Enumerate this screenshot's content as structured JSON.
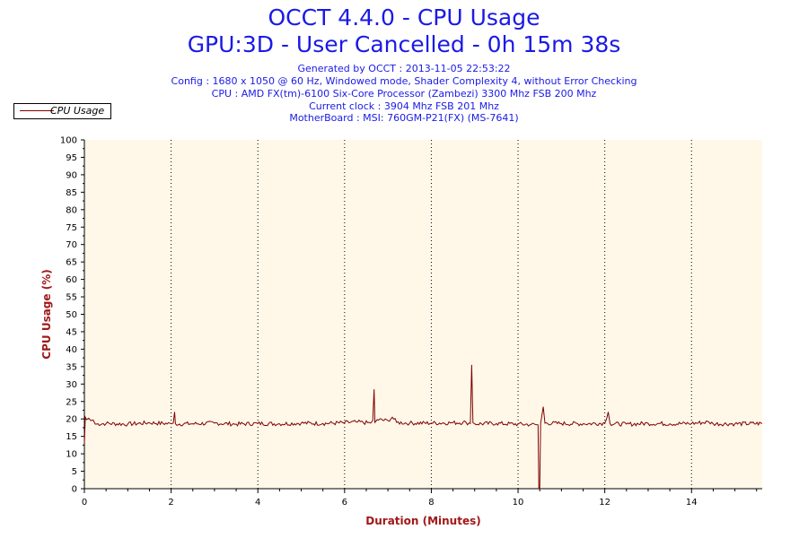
{
  "header": {
    "title": "OCCT 4.4.0 - CPU Usage",
    "subtitle": "GPU:3D - User Cancelled - 0h 15m 38s",
    "info_lines": [
      "Generated by OCCT : 2013-11-05 22:53:22",
      "Config : 1680 x 1050 @ 60 Hz, Windowed mode, Shader Complexity 4, without Error Checking",
      "CPU : AMD FX(tm)-6100 Six-Core Processor (Zambezi) 3300 Mhz FSB 200 Mhz",
      "Current clock : 3904 Mhz FSB 201 Mhz",
      "MotherBoard : MSI: 760GM-P21(FX) (MS-7641)"
    ]
  },
  "colors": {
    "line": "#800000",
    "plot_background": "#fff8e9",
    "title": "#1a1ae6",
    "axis_label": "#a01818"
  },
  "chart_data": {
    "type": "line",
    "title": "OCCT 4.4.0 - CPU Usage",
    "xlabel": "Duration (Minutes)",
    "ylabel": "CPU Usage (%)",
    "xlim": [
      0,
      15.63
    ],
    "ylim": [
      0,
      100
    ],
    "x_ticks": [
      0,
      2,
      4,
      6,
      8,
      10,
      12,
      14
    ],
    "y_ticks": [
      0,
      5,
      10,
      15,
      20,
      25,
      30,
      35,
      40,
      45,
      50,
      55,
      60,
      65,
      70,
      75,
      80,
      85,
      90,
      95,
      100
    ],
    "grid": {
      "vertical": true,
      "horizontal": false,
      "style": "dotted"
    },
    "legend": {
      "position": "top-left",
      "entries": [
        "CPU Usage"
      ]
    },
    "series": [
      {
        "name": "CPU Usage",
        "baseline": 18.7,
        "points": [
          [
            0.0,
            13
          ],
          [
            0.02,
            20.5
          ],
          [
            0.05,
            19.8
          ],
          [
            0.1,
            20.2
          ],
          [
            0.15,
            19.5
          ],
          [
            0.2,
            19.7
          ],
          [
            0.25,
            18.5
          ],
          [
            0.5,
            18.7
          ],
          [
            1.0,
            18.5
          ],
          [
            1.5,
            18.9
          ],
          [
            2.0,
            18.6
          ],
          [
            2.05,
            18.8
          ],
          [
            2.08,
            22
          ],
          [
            2.1,
            18.6
          ],
          [
            2.5,
            18.6
          ],
          [
            3.0,
            18.8
          ],
          [
            3.5,
            18.5
          ],
          [
            4.0,
            18.7
          ],
          [
            4.5,
            18.6
          ],
          [
            5.0,
            18.8
          ],
          [
            5.5,
            18.7
          ],
          [
            6.0,
            18.9
          ],
          [
            6.3,
            19.1
          ],
          [
            6.6,
            18.8
          ],
          [
            6.65,
            19.5
          ],
          [
            6.68,
            28.5
          ],
          [
            6.7,
            19.0
          ],
          [
            6.75,
            19.8
          ],
          [
            7.0,
            19.5
          ],
          [
            7.1,
            20.5
          ],
          [
            7.2,
            19.0
          ],
          [
            7.5,
            18.8
          ],
          [
            8.0,
            18.8
          ],
          [
            8.5,
            18.9
          ],
          [
            8.8,
            19.0
          ],
          [
            8.9,
            18.7
          ],
          [
            8.93,
            35.5
          ],
          [
            8.96,
            18.9
          ],
          [
            9.0,
            18.6
          ],
          [
            9.5,
            18.7
          ],
          [
            10.0,
            18.5
          ],
          [
            10.3,
            18.4
          ],
          [
            10.46,
            18.3
          ],
          [
            10.48,
            0
          ],
          [
            10.5,
            0
          ],
          [
            10.52,
            18.7
          ],
          [
            10.55,
            21
          ],
          [
            10.58,
            23.5
          ],
          [
            10.62,
            18.8
          ],
          [
            11.0,
            18.7
          ],
          [
            11.5,
            18.6
          ],
          [
            12.0,
            18.8
          ],
          [
            12.08,
            22
          ],
          [
            12.12,
            18.6
          ],
          [
            12.5,
            18.5
          ],
          [
            13.0,
            18.7
          ],
          [
            13.5,
            18.6
          ],
          [
            14.0,
            18.7
          ],
          [
            14.4,
            19.1
          ],
          [
            14.5,
            18.6
          ],
          [
            15.0,
            18.6
          ],
          [
            15.63,
            18.7
          ]
        ]
      }
    ]
  }
}
